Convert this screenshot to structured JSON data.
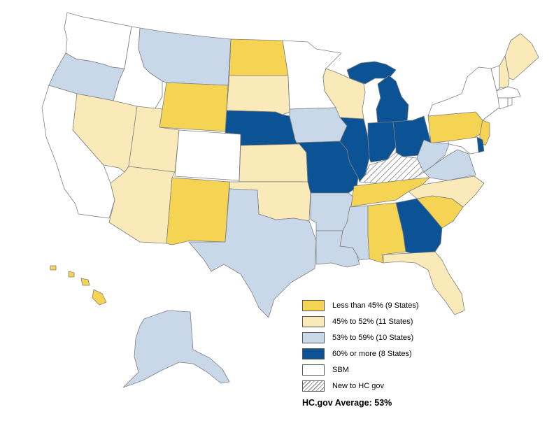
{
  "map": {
    "colors": {
      "lt45": "#f6d453",
      "45to52": "#faeaba",
      "53to59": "#c8d8e8",
      "gte60": "#0b5394",
      "sbm": "#ffffff",
      "border": "#7f7f7f"
    },
    "state_groups": [
      {
        "category": "lt45",
        "states": [
          "ND",
          "WY",
          "NM",
          "PA",
          "NJ",
          "TN",
          "AL",
          "SC",
          "HI"
        ]
      },
      {
        "category": "45to52",
        "states": [
          "NV",
          "UT",
          "AZ",
          "SD",
          "KS",
          "OK",
          "NC",
          "FL",
          "WI",
          "ME",
          "NH"
        ]
      },
      {
        "category": "53to59",
        "states": [
          "OR",
          "MT",
          "IA",
          "TX",
          "AR",
          "LA",
          "MS",
          "WV",
          "VA",
          "AK"
        ]
      },
      {
        "category": "gte60",
        "states": [
          "NE",
          "MO",
          "IL",
          "IN",
          "MI",
          "OH",
          "GA",
          "DE"
        ]
      },
      {
        "category": "sbm",
        "states": [
          "WA",
          "ID",
          "CA",
          "CO",
          "MN",
          "NY",
          "VT",
          "MA",
          "CT",
          "RI",
          "MD"
        ]
      },
      {
        "category": "new",
        "states": [
          "KY"
        ]
      }
    ]
  },
  "legend": {
    "items": [
      {
        "label": "Less than 45% (9 States)",
        "color": "#f6d453",
        "pattern": "solid"
      },
      {
        "label": "45% to 52% (11 States)",
        "color": "#faeaba",
        "pattern": "solid"
      },
      {
        "label": "53% to 59% (10 States)",
        "color": "#c8d8e8",
        "pattern": "solid"
      },
      {
        "label": "60% or more (8 States)",
        "color": "#0b5394",
        "pattern": "solid"
      },
      {
        "label": "SBM",
        "color": "#ffffff",
        "pattern": "solid"
      },
      {
        "label": "New to HC gov",
        "color": "#ffffff",
        "pattern": "hatched"
      }
    ]
  },
  "footer": {
    "average_text": "HC.gov Average: 53%"
  }
}
